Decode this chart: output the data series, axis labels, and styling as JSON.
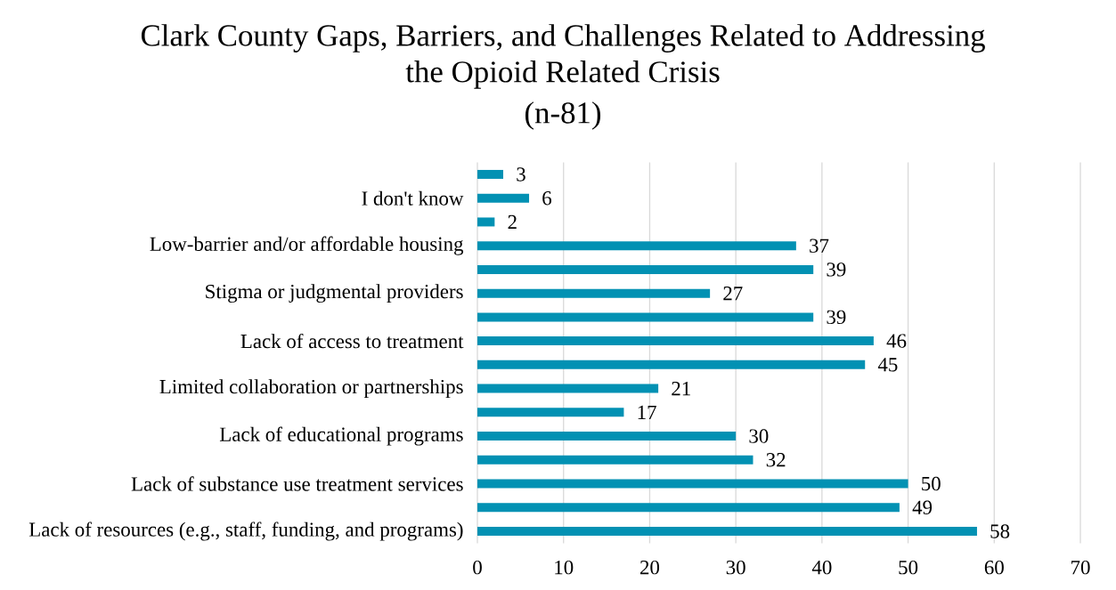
{
  "chart_data": {
    "type": "bar",
    "orientation": "horizontal",
    "title": "Clark County Gaps, Barriers, and Challenges Related to Addressing the Opioid Related Crisis",
    "subtitle": "(n-81)",
    "categories": [
      null,
      "I don't know",
      null,
      "Low-barrier and/or affordable housing",
      null,
      "Stigma or judgmental providers",
      null,
      "Lack of access to treatment",
      null,
      "Limited collaboration or partnerships",
      null,
      "Lack of educational programs",
      null,
      "Lack of substance use treatment services",
      null,
      "Lack of resources (e.g., staff, funding, and programs)"
    ],
    "values": [
      3,
      6,
      2,
      37,
      39,
      27,
      39,
      46,
      45,
      21,
      17,
      30,
      32,
      50,
      49,
      58
    ],
    "color": "#0291b3",
    "xlim": [
      0,
      70
    ],
    "xticks": [
      0,
      10,
      20,
      30,
      40,
      50,
      60,
      70
    ],
    "grid": "x",
    "data_labels": true
  }
}
